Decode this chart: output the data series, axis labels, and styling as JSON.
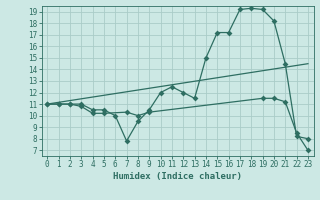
{
  "xlabel": "Humidex (Indice chaleur)",
  "bg_color": "#cce8e4",
  "line_color": "#2e6e62",
  "grid_color": "#aaccc8",
  "xlim": [
    -0.5,
    23.5
  ],
  "ylim": [
    6.5,
    19.5
  ],
  "xticks": [
    0,
    1,
    2,
    3,
    4,
    5,
    6,
    7,
    8,
    9,
    10,
    11,
    12,
    13,
    14,
    15,
    16,
    17,
    18,
    19,
    20,
    21,
    22,
    23
  ],
  "yticks": [
    7,
    8,
    9,
    10,
    11,
    12,
    13,
    14,
    15,
    16,
    17,
    18,
    19
  ],
  "line1_x": [
    0,
    1,
    2,
    3,
    4,
    5,
    6,
    7,
    8,
    9,
    10,
    11,
    12,
    13,
    14,
    15,
    16,
    17,
    18,
    19,
    20,
    21,
    22,
    23
  ],
  "line1_y": [
    11,
    11,
    11,
    11,
    10.5,
    10.5,
    10,
    7.8,
    9.5,
    10.5,
    12,
    12.5,
    12,
    11.5,
    15,
    17.2,
    17.2,
    19.2,
    19.3,
    19.2,
    18.2,
    14.5,
    8.2,
    8.0
  ],
  "line2_x": [
    0,
    1,
    2,
    3,
    4,
    5,
    7,
    8,
    9,
    19,
    20,
    21,
    22,
    23
  ],
  "line2_y": [
    11,
    11,
    11,
    10.8,
    10.2,
    10.2,
    10.3,
    10.0,
    10.3,
    11.5,
    11.5,
    11.2,
    8.5,
    7.0
  ],
  "line3_x": [
    0,
    23
  ],
  "line3_y": [
    11,
    14.5
  ]
}
